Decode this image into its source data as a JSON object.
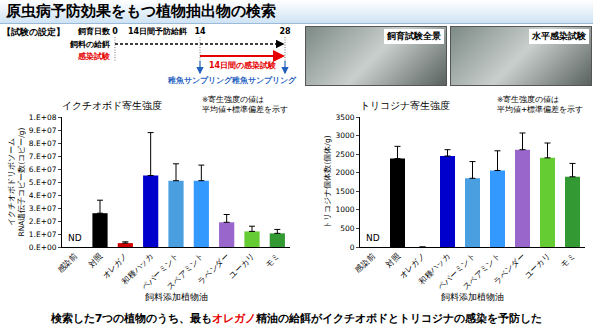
{
  "header": {
    "title": "原虫病予防効果をもつ植物抽出物の検索"
  },
  "setup": {
    "heading": "【試験の設定】",
    "day_label": "飼育日数",
    "days": [
      0,
      14,
      28
    ],
    "feeding": "飼料の給餌",
    "infection": "感染試験",
    "prevent": "14日間予防給餌",
    "infect_period": "14日間の感染試験",
    "sampling": "稚魚サンプリング"
  },
  "photos": [
    "飼育試験全景",
    "水平感染試験"
  ],
  "chart_data": [
    {
      "type": "bar",
      "title": "イクチオボド寄生強度",
      "note": [
        "※寄生強度の値は",
        "平均値+標準偏差を示す"
      ],
      "x_label": "飼料添加植物油",
      "y_label": [
        "イクチオボドリボソーム",
        "RNA遺伝子コピー数(コピー/g)"
      ],
      "categories": [
        "感染前",
        "対照",
        "オレガノ",
        "和種ハッカ",
        "ペパーミント",
        "スペアミント",
        "ラベンダー",
        "ユーカリ",
        "モミ"
      ],
      "values": [
        null,
        26000000,
        3000000,
        55000000,
        51000000,
        51000000,
        19000000,
        12000000,
        10500000
      ],
      "errors": [
        null,
        10000000,
        1000000,
        33000000,
        13000000,
        12000000,
        6000000,
        4000000,
        3000000
      ],
      "value_labels": [
        "ND",
        null,
        null,
        null,
        null,
        null,
        null,
        null,
        null
      ],
      "colors": [
        "#000000",
        "#000000",
        "#cc0000",
        "#0000cc",
        "#4a9fe0",
        "#3399ff",
        "#9966cc",
        "#66cc33",
        "#339933"
      ],
      "ylim": [
        0,
        100000000
      ],
      "yticks": [
        {
          "value": 0,
          "label": "0.E+00"
        },
        {
          "value": 10000000,
          "label": "1.E+07"
        },
        {
          "value": 20000000,
          "label": "2.E+07"
        },
        {
          "value": 30000000,
          "label": "3.E+07"
        },
        {
          "value": 40000000,
          "label": "4.E+07"
        },
        {
          "value": 50000000,
          "label": "5.E+07"
        },
        {
          "value": 60000000,
          "label": "6.E+07"
        },
        {
          "value": 70000000,
          "label": "7.E+07"
        },
        {
          "value": 80000000,
          "label": "8.E+07"
        },
        {
          "value": 90000000,
          "label": "9.E+07"
        },
        {
          "value": 100000000,
          "label": "1.E+08"
        }
      ],
      "grid": false
    },
    {
      "type": "bar",
      "title": "トリコジナ寄生強度",
      "note": [
        "※寄生強度の値は",
        "平均値+標準偏差を示す"
      ],
      "x_label": "飼料添加植物油",
      "y_label": [
        "トリコジナ個体数(個体/g)"
      ],
      "categories": [
        "感染前",
        "対照",
        "オレガノ",
        "和種ハッカ",
        "ペパーミント",
        "スペアミント",
        "ラベンダー",
        "ユーカリ",
        "モミ"
      ],
      "values": [
        null,
        2380,
        0,
        2450,
        1850,
        2060,
        2620,
        2400,
        1890
      ],
      "errors": [
        null,
        330,
        null,
        170,
        450,
        530,
        450,
        400,
        360
      ],
      "value_labels": [
        "ND",
        null,
        null,
        null,
        null,
        null,
        null,
        null,
        null
      ],
      "colors": [
        "#000000",
        "#000000",
        "#cc0000",
        "#0000cc",
        "#4a9fe0",
        "#3399ff",
        "#9966cc",
        "#66cc33",
        "#339933"
      ],
      "ylim": [
        0,
        3500
      ],
      "yticks": [
        0,
        500,
        1000,
        1500,
        2000,
        2500,
        3000,
        3500
      ],
      "grid": false
    }
  ],
  "footer": {
    "before": "検索した7つの植物のうち、最も",
    "highlight": "オレガノ",
    "after": "精油の給餌がイクチオボドとトリコジナの感染を予防した"
  }
}
